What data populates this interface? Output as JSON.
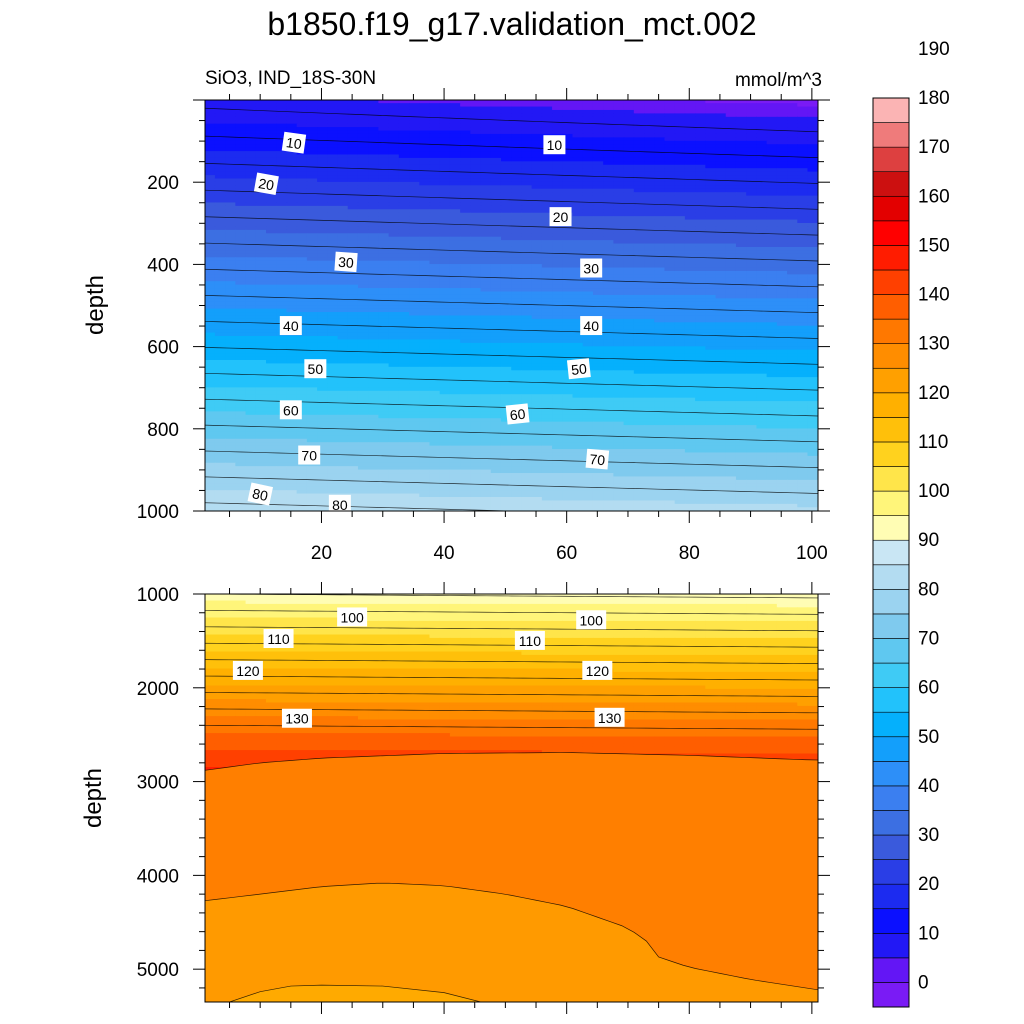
{
  "chart_data": {
    "type": "contour",
    "title": "b1850.f19_g17.validation_mct.002",
    "left_subtitle": "SiO3, IND_18S-30N",
    "right_subtitle": "mmol/m^3",
    "panels": [
      {
        "name": "upper",
        "ylabel": "depth",
        "xlabel": "",
        "xlim": [
          1,
          101
        ],
        "ylim": [
          0,
          1000
        ],
        "xticks": [
          "20",
          "40",
          "60",
          "80",
          "100"
        ],
        "yticks": [
          "200",
          "400",
          "600",
          "800",
          "1000"
        ],
        "x_grid": [
          1,
          101
        ],
        "contour_levels": [
          10,
          20,
          30,
          40,
          50,
          60,
          70,
          80
        ],
        "labeled_contours": [
          {
            "value": "10",
            "x": 15.5,
            "depth": 105,
            "angle": 8
          },
          {
            "value": "10",
            "x": 58,
            "depth": 110,
            "angle": 0
          },
          {
            "value": "20",
            "x": 11,
            "depth": 205,
            "angle": 10
          },
          {
            "value": "20",
            "x": 59,
            "depth": 285,
            "angle": 0
          },
          {
            "value": "30",
            "x": 24,
            "depth": 395,
            "angle": 4
          },
          {
            "value": "30",
            "x": 64,
            "depth": 410,
            "angle": 0
          },
          {
            "value": "40",
            "x": 15,
            "depth": 550,
            "angle": 0
          },
          {
            "value": "40",
            "x": 64,
            "depth": 550,
            "angle": 0
          },
          {
            "value": "50",
            "x": 19,
            "depth": 655,
            "angle": 0
          },
          {
            "value": "50",
            "x": 62,
            "depth": 655,
            "angle": -6
          },
          {
            "value": "60",
            "x": 15,
            "depth": 755,
            "angle": 0
          },
          {
            "value": "60",
            "x": 52,
            "depth": 765,
            "angle": -6
          },
          {
            "value": "70",
            "x": 18,
            "depth": 865,
            "angle": 0
          },
          {
            "value": "70",
            "x": 65,
            "depth": 875,
            "angle": 5
          },
          {
            "value": "80",
            "x": 10,
            "depth": 960,
            "angle": 12
          },
          {
            "value": "80",
            "x": 23,
            "depth": 985,
            "angle": 0
          }
        ]
      },
      {
        "name": "lower",
        "ylabel": "depth",
        "xlabel": "",
        "xlim": [
          1,
          101
        ],
        "ylim": [
          1000,
          5350
        ],
        "xticks": [],
        "yticks": [
          "1000",
          "2000",
          "3000",
          "4000",
          "5000"
        ],
        "contour_levels": [
          90,
          100,
          110,
          120,
          130,
          140
        ],
        "labeled_contours": [
          {
            "value": "100",
            "x": 25,
            "depth": 1250,
            "angle": 0
          },
          {
            "value": "100",
            "x": 64,
            "depth": 1280,
            "angle": 0
          },
          {
            "value": "110",
            "x": 13,
            "depth": 1480,
            "angle": 0
          },
          {
            "value": "110",
            "x": 54,
            "depth": 1500,
            "angle": 0
          },
          {
            "value": "120",
            "x": 8,
            "depth": 1820,
            "angle": 0
          },
          {
            "value": "120",
            "x": 65,
            "depth": 1820,
            "angle": 0
          },
          {
            "value": "130",
            "x": 16,
            "depth": 2330,
            "angle": 0
          },
          {
            "value": "130",
            "x": 67,
            "depth": 2320,
            "angle": 0
          }
        ]
      }
    ],
    "colorbar": {
      "labels": [
        "0",
        "10",
        "20",
        "30",
        "40",
        "50",
        "60",
        "70",
        "80",
        "90",
        "100",
        "110",
        "120",
        "130",
        "140",
        "150",
        "160",
        "170",
        "180",
        "190"
      ],
      "colors": [
        "#7a1bf5",
        "#6316f5",
        "#2218f5",
        "#0b10ff",
        "#1c2bf0",
        "#2a3ee6",
        "#3a5adc",
        "#3c6fe2",
        "#3b7ff0",
        "#2d8ff8",
        "#139ffb",
        "#05b0fc",
        "#22c2fb",
        "#3fcbf5",
        "#5fc8f0",
        "#7fcaee",
        "#9bd3f0",
        "#b3dcf1",
        "#c9e6f4",
        "#fffdb4",
        "#fff57a",
        "#ffe54a",
        "#ffd21e",
        "#ffc00a",
        "#ffb000",
        "#ffa000",
        "#ff8d00",
        "#ff7800",
        "#ff5e00",
        "#ff4000",
        "#ff1c00",
        "#ff0000",
        "#e30000",
        "#cc1010",
        "#dd4040",
        "#ef7b7b",
        "#fbb4b4"
      ]
    }
  }
}
